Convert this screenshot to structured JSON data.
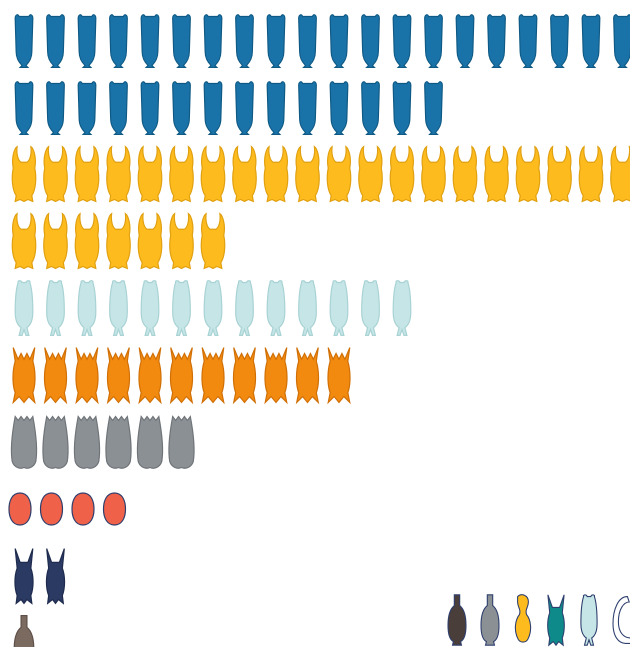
{
  "chart_data": {
    "type": "pictograph",
    "title": "",
    "xlabel": "",
    "ylabel": "",
    "icons_per_row": 20,
    "rows": [
      {
        "count": 34,
        "shape": "goblet",
        "color": "#1a73a8",
        "stroke": "#0f5a85"
      },
      {
        "count": 27,
        "shape": "horned",
        "color": "#fdbb1e",
        "stroke": "#e0a010"
      },
      {
        "count": 13,
        "shape": "vase",
        "color": "#c5e5e6",
        "stroke": "#a8d2d4"
      },
      {
        "count": 11,
        "shape": "spiked",
        "color": "#f28a0f",
        "stroke": "#d06f05"
      },
      {
        "count": 6,
        "shape": "blob",
        "color": "#8b9095",
        "stroke": "#6f7479"
      },
      {
        "count": 4,
        "shape": "oval",
        "color": "#ef6148",
        "stroke": "#2e3f6e"
      },
      {
        "count": 2,
        "shape": "antler",
        "color": "#2b3a63",
        "stroke": "#1e2b4d"
      },
      {
        "count": 1,
        "shape": "bottle",
        "color": "#7a6a60",
        "stroke": "#5e5048"
      }
    ],
    "legend": {
      "placement": "bottom-right",
      "items": [
        {
          "shape": "bottle",
          "color": "#4a3e3b"
        },
        {
          "shape": "bottle",
          "color": "#8b9095"
        },
        {
          "shape": "ring",
          "color": "#fdbb1e"
        },
        {
          "shape": "antler",
          "color": "#0e8a8a"
        },
        {
          "shape": "vase",
          "color": "#c5e5e6"
        },
        {
          "shape": "curl",
          "color": "#ffffff"
        }
      ]
    }
  }
}
